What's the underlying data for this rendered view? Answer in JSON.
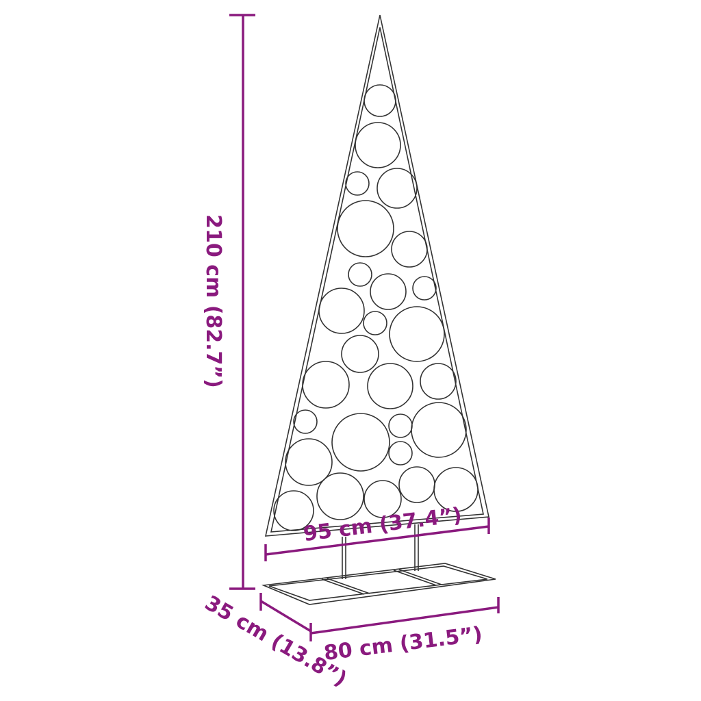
{
  "colors": {
    "dimension": "#8a1a7e",
    "product_outline": "#333333"
  },
  "dimensions": {
    "height": "210 cm (82.7”)",
    "tree_width": "95 cm (37.4”)",
    "base_width": "80 cm (31.5”)",
    "base_depth": "35 cm (13.8”)"
  }
}
